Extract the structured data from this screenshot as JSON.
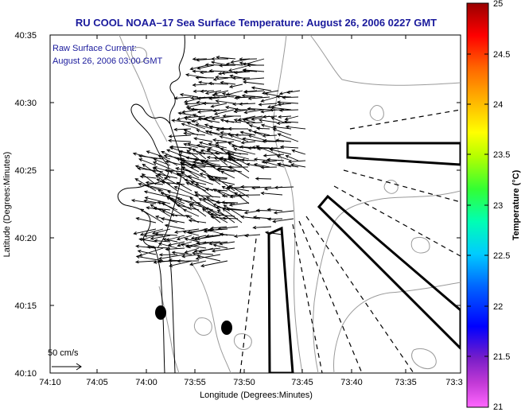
{
  "title": "RU COOL  NOAA–17  Sea Surface Temperature:  August 26, 2006 0227 GMT",
  "annotation": {
    "line1": "Raw Surface Current:",
    "line2": "August 26, 2006 03:00 GMT"
  },
  "scale": {
    "label": "50 cm/s"
  },
  "axes": {
    "xlabel": "Longitude (Degrees:Minutes)",
    "ylabel": "Latitude (Degrees:Minutes)",
    "xticks": [
      "74:10",
      "74:05",
      "74:00",
      "73:55",
      "73:50",
      "73:45",
      "73:40",
      "73:35",
      "73:3"
    ],
    "yticks": [
      "40:35",
      "40:30",
      "40:25",
      "40:20",
      "40:15",
      "40:10"
    ]
  },
  "colorbar": {
    "label": "Temperature (°C)",
    "ticks": [
      "25",
      "24.5",
      "24",
      "23.5",
      "23",
      "22.5",
      "22",
      "21.5",
      "21"
    ],
    "min": 21,
    "max": 25
  },
  "colors": {
    "title": "#1a1a9c",
    "contour": "#999999",
    "coastline": "#000000",
    "vector": "#000000"
  }
}
